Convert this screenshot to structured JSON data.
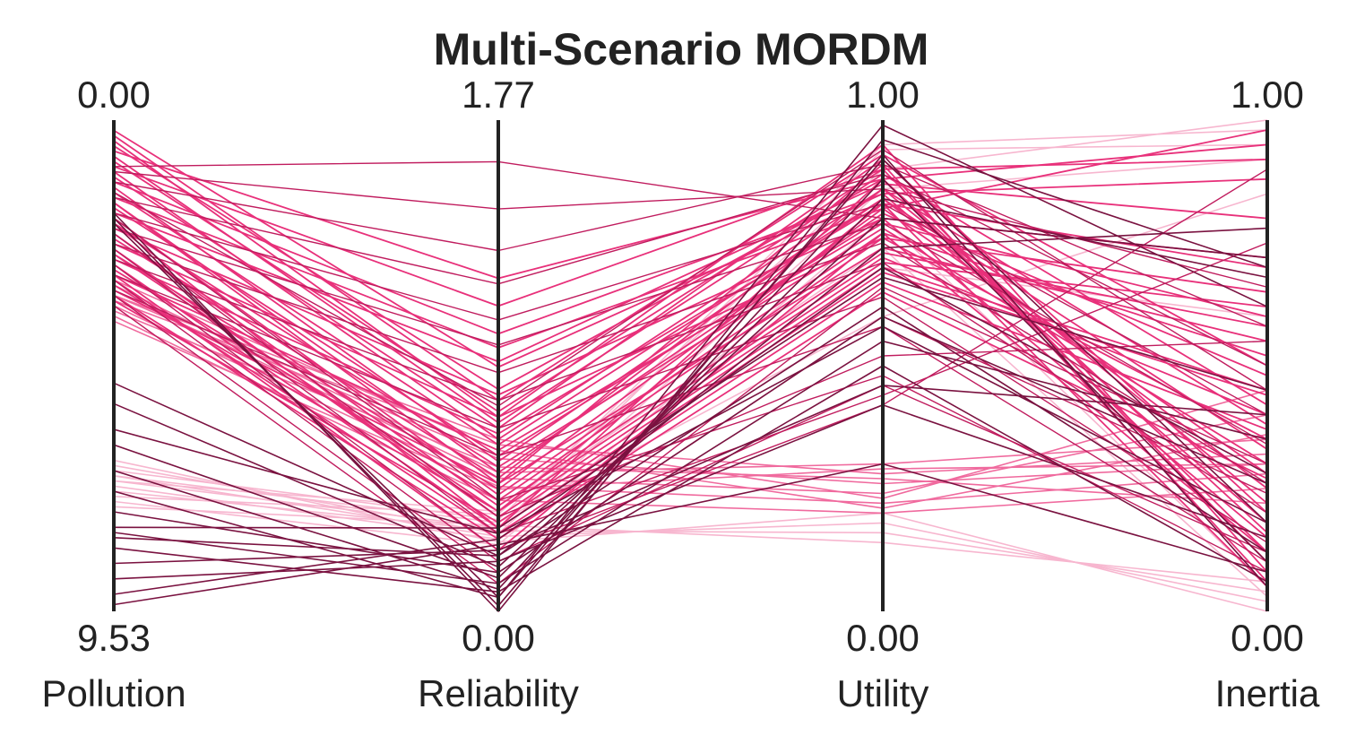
{
  "chart_data": {
    "type": "parallel-coordinates",
    "title": "Multi-Scenario MORDM",
    "axes": [
      {
        "name": "Pollution",
        "top_label": "0.00",
        "bottom_label": "9.53",
        "top_value": 0.0,
        "bottom_value": 9.53
      },
      {
        "name": "Reliability",
        "top_label": "1.77",
        "bottom_label": "0.00",
        "top_value": 1.77,
        "bottom_value": 0.0
      },
      {
        "name": "Utility",
        "top_label": "1.00",
        "bottom_label": "0.00",
        "top_value": 1.0,
        "bottom_value": 0.0
      },
      {
        "name": "Inertia",
        "top_label": "1.00",
        "bottom_label": "0.00",
        "top_value": 1.0,
        "bottom_value": 0.0
      }
    ],
    "grid": false,
    "legend": "none",
    "colors": {
      "axis": "#222222",
      "text": "#222222",
      "pale_pink": "#f7b6cf",
      "light_pink": "#f06a9e",
      "pink": "#e8307a",
      "crimson": "#c01c5e",
      "dark": "#7a1240"
    },
    "series": [
      {
        "color": "pale_pink",
        "values": [
          6.6,
          0.25,
          0.2,
          0.0
        ]
      },
      {
        "color": "pale_pink",
        "values": [
          6.9,
          0.27,
          0.18,
          0.02
        ]
      },
      {
        "color": "pale_pink",
        "values": [
          7.2,
          0.29,
          0.16,
          0.04
        ]
      },
      {
        "color": "pale_pink",
        "values": [
          7.5,
          0.31,
          0.14,
          0.06
        ]
      },
      {
        "color": "pale_pink",
        "values": [
          6.8,
          0.33,
          0.95,
          0.98
        ]
      },
      {
        "color": "pale_pink",
        "values": [
          7.0,
          0.3,
          0.94,
          0.95
        ]
      },
      {
        "color": "pale_pink",
        "values": [
          7.3,
          0.35,
          0.9,
          1.0
        ]
      },
      {
        "color": "pale_pink",
        "values": [
          6.7,
          0.28,
          0.86,
          0.92
        ]
      },
      {
        "color": "pale_pink",
        "values": [
          7.1,
          0.26,
          0.7,
          0.6
        ]
      },
      {
        "color": "pale_pink",
        "values": [
          6.9,
          0.32,
          0.6,
          0.85
        ]
      },
      {
        "color": "pale_pink",
        "values": [
          7.4,
          0.24,
          0.8,
          0.05
        ]
      },
      {
        "color": "pale_pink",
        "values": [
          7.0,
          0.36,
          0.74,
          0.03
        ]
      },
      {
        "color": "light_pink",
        "values": [
          3.4,
          0.55,
          0.26,
          0.3
        ]
      },
      {
        "color": "light_pink",
        "values": [
          3.6,
          0.45,
          0.22,
          0.28
        ]
      },
      {
        "color": "light_pink",
        "values": [
          3.2,
          0.5,
          0.3,
          0.35
        ]
      },
      {
        "color": "light_pink",
        "values": [
          3.8,
          0.4,
          0.2,
          0.25
        ]
      },
      {
        "color": "light_pink",
        "values": [
          3.5,
          0.6,
          0.28,
          0.32
        ]
      },
      {
        "color": "light_pink",
        "values": [
          3.3,
          0.48,
          0.24,
          0.4
        ]
      },
      {
        "color": "light_pink",
        "values": [
          3.7,
          0.52,
          0.27,
          0.22
        ]
      },
      {
        "color": "light_pink",
        "values": [
          3.1,
          0.58,
          0.21,
          0.36
        ]
      },
      {
        "color": "light_pink",
        "values": [
          3.9,
          0.44,
          0.29,
          0.3
        ]
      },
      {
        "color": "light_pink",
        "values": [
          3.4,
          0.62,
          0.23,
          0.45
        ]
      },
      {
        "color": "pink",
        "values": [
          0.2,
          0.88,
          0.85,
          0.18
        ]
      },
      {
        "color": "pink",
        "values": [
          0.5,
          0.8,
          0.88,
          0.12
        ]
      },
      {
        "color": "pink",
        "values": [
          0.8,
          0.72,
          0.9,
          0.1
        ]
      },
      {
        "color": "pink",
        "values": [
          1.1,
          0.66,
          0.92,
          0.2
        ]
      },
      {
        "color": "pink",
        "values": [
          1.4,
          0.6,
          0.84,
          0.25
        ]
      },
      {
        "color": "pink",
        "values": [
          1.7,
          0.56,
          0.8,
          0.15
        ]
      },
      {
        "color": "pink",
        "values": [
          2.0,
          0.52,
          0.78,
          0.3
        ]
      },
      {
        "color": "pink",
        "values": [
          2.3,
          0.48,
          0.86,
          0.22
        ]
      },
      {
        "color": "pink",
        "values": [
          2.6,
          0.44,
          0.82,
          0.28
        ]
      },
      {
        "color": "pink",
        "values": [
          2.9,
          0.4,
          0.76,
          0.35
        ]
      },
      {
        "color": "pink",
        "values": [
          3.2,
          0.36,
          0.72,
          0.4
        ]
      },
      {
        "color": "pink",
        "values": [
          3.5,
          0.32,
          0.7,
          0.45
        ]
      },
      {
        "color": "pink",
        "values": [
          0.6,
          1.2,
          0.88,
          0.95
        ]
      },
      {
        "color": "pink",
        "values": [
          0.9,
          1.1,
          0.9,
          0.92
        ]
      },
      {
        "color": "pink",
        "values": [
          1.2,
          1.0,
          0.85,
          0.88
        ]
      },
      {
        "color": "pink",
        "values": [
          1.5,
          0.95,
          0.82,
          0.98
        ]
      },
      {
        "color": "pink",
        "values": [
          1.8,
          0.9,
          0.87,
          0.8
        ]
      },
      {
        "color": "pink",
        "values": [
          2.1,
          0.78,
          0.8,
          0.72
        ]
      },
      {
        "color": "pink",
        "values": [
          2.4,
          0.7,
          0.76,
          0.65
        ]
      },
      {
        "color": "pink",
        "values": [
          2.7,
          0.64,
          0.83,
          0.7
        ]
      },
      {
        "color": "pink",
        "values": [
          3.0,
          0.58,
          0.79,
          0.6
        ]
      },
      {
        "color": "pink",
        "values": [
          3.3,
          0.46,
          0.74,
          0.55
        ]
      },
      {
        "color": "pink",
        "values": [
          0.3,
          0.76,
          0.93,
          0.5
        ]
      },
      {
        "color": "pink",
        "values": [
          0.7,
          0.68,
          0.89,
          0.42
        ]
      },
      {
        "color": "pink",
        "values": [
          1.0,
          0.62,
          0.86,
          0.38
        ]
      },
      {
        "color": "pink",
        "values": [
          1.3,
          0.54,
          0.84,
          0.33
        ]
      },
      {
        "color": "pink",
        "values": [
          1.6,
          0.5,
          0.81,
          0.48
        ]
      },
      {
        "color": "pink",
        "values": [
          1.9,
          0.42,
          0.77,
          0.52
        ]
      },
      {
        "color": "pink",
        "values": [
          2.2,
          0.38,
          0.73,
          0.58
        ]
      },
      {
        "color": "pink",
        "values": [
          2.5,
          0.34,
          0.71,
          0.62
        ]
      },
      {
        "color": "pink",
        "values": [
          2.8,
          0.3,
          0.69,
          0.44
        ]
      },
      {
        "color": "pink",
        "values": [
          3.1,
          0.28,
          0.67,
          0.37
        ]
      },
      {
        "color": "pink",
        "values": [
          3.4,
          0.26,
          0.65,
          0.27
        ]
      },
      {
        "color": "pink",
        "values": [
          0.4,
          0.7,
          0.95,
          0.08
        ]
      },
      {
        "color": "pink",
        "values": [
          1.6,
          0.46,
          0.91,
          0.06
        ]
      },
      {
        "color": "pink",
        "values": [
          2.6,
          0.36,
          0.83,
          0.05
        ]
      },
      {
        "color": "pink",
        "values": [
          3.0,
          0.22,
          0.77,
          0.12
        ]
      },
      {
        "color": "pink",
        "values": [
          2.0,
          0.3,
          0.88,
          0.16
        ]
      },
      {
        "color": "crimson",
        "values": [
          0.9,
          1.62,
          0.8,
          0.72
        ]
      },
      {
        "color": "crimson",
        "values": [
          1.0,
          1.45,
          0.86,
          0.66
        ]
      },
      {
        "color": "crimson",
        "values": [
          1.2,
          1.3,
          0.91,
          0.58
        ]
      },
      {
        "color": "crimson",
        "values": [
          1.5,
          1.18,
          0.89,
          0.5
        ]
      },
      {
        "color": "crimson",
        "values": [
          1.8,
          1.05,
          0.83,
          0.4
        ]
      },
      {
        "color": "crimson",
        "values": [
          2.1,
          0.96,
          0.79,
          0.34
        ]
      },
      {
        "color": "crimson",
        "values": [
          2.4,
          0.86,
          0.75,
          0.26
        ]
      },
      {
        "color": "crimson",
        "values": [
          2.7,
          0.76,
          0.71,
          0.2
        ]
      },
      {
        "color": "crimson",
        "values": [
          3.0,
          0.66,
          0.64,
          0.14
        ]
      },
      {
        "color": "crimson",
        "values": [
          3.3,
          0.56,
          0.58,
          0.1
        ]
      },
      {
        "color": "crimson",
        "values": [
          1.9,
          0.4,
          0.48,
          0.08
        ]
      },
      {
        "color": "crimson",
        "values": [
          2.2,
          0.34,
          0.52,
          0.55
        ]
      },
      {
        "color": "crimson",
        "values": [
          2.5,
          0.28,
          0.44,
          0.75
        ]
      },
      {
        "color": "crimson",
        "values": [
          2.8,
          0.22,
          0.42,
          0.9
        ]
      },
      {
        "color": "crimson",
        "values": [
          3.1,
          0.18,
          0.46,
          0.12
        ]
      },
      {
        "color": "crimson",
        "values": [
          3.4,
          0.14,
          0.6,
          0.24
        ]
      },
      {
        "color": "crimson",
        "values": [
          3.6,
          0.1,
          0.66,
          0.3
        ]
      },
      {
        "color": "crimson",
        "values": [
          1.4,
          0.74,
          0.94,
          0.45
        ]
      },
      {
        "color": "dark",
        "values": [
          5.1,
          0.2,
          0.74,
          0.78
        ]
      },
      {
        "color": "dark",
        "values": [
          5.5,
          0.16,
          0.8,
          0.72
        ]
      },
      {
        "color": "dark",
        "values": [
          6.3,
          0.12,
          0.84,
          0.68
        ]
      },
      {
        "color": "dark",
        "values": [
          6.8,
          0.08,
          0.88,
          0.1
        ]
      },
      {
        "color": "dark",
        "values": [
          7.2,
          0.05,
          0.92,
          0.18
        ]
      },
      {
        "color": "dark",
        "values": [
          7.6,
          0.14,
          0.6,
          0.26
        ]
      },
      {
        "color": "dark",
        "values": [
          8.0,
          0.1,
          0.55,
          0.35
        ]
      },
      {
        "color": "dark",
        "values": [
          8.3,
          0.07,
          0.5,
          0.06
        ]
      },
      {
        "color": "dark",
        "values": [
          8.6,
          0.22,
          0.46,
          0.4
        ]
      },
      {
        "color": "dark",
        "values": [
          8.9,
          0.18,
          0.42,
          0.15
        ]
      },
      {
        "color": "dark",
        "values": [
          9.2,
          0.26,
          0.7,
          0.28
        ]
      },
      {
        "color": "dark",
        "values": [
          9.4,
          0.24,
          0.3,
          0.08
        ]
      },
      {
        "color": "dark",
        "values": [
          1.8,
          0.0,
          0.96,
          0.7
        ]
      },
      {
        "color": "dark",
        "values": [
          1.9,
          0.02,
          0.93,
          0.05
        ]
      },
      {
        "color": "dark",
        "values": [
          2.0,
          0.05,
          0.99,
          0.62
        ]
      },
      {
        "color": "dark",
        "values": [
          7.9,
          0.3,
          0.68,
          0.45
        ]
      },
      {
        "color": "dark",
        "values": [
          8.1,
          0.2,
          0.62,
          0.12
        ]
      },
      {
        "color": "dark",
        "values": [
          6.0,
          0.28,
          0.58,
          0.18
        ]
      }
    ]
  }
}
